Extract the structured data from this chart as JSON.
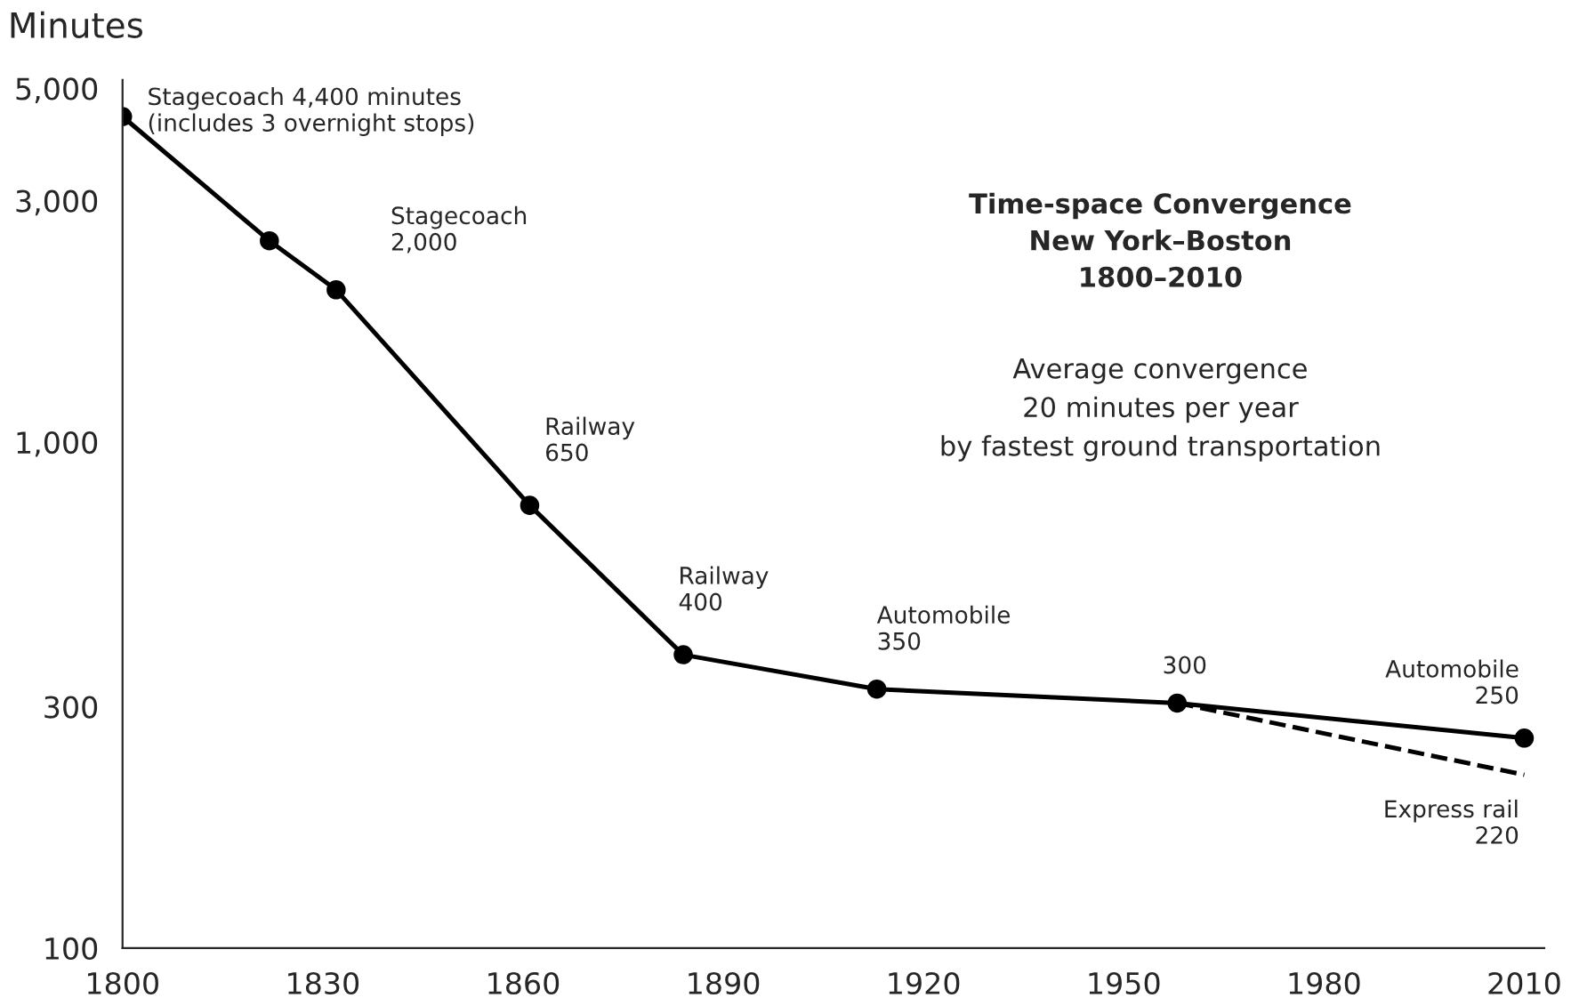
{
  "chart_data": {
    "type": "line",
    "title": "Time-space Convergence\nNew York–Boston\n1800–2010",
    "subtitle": "Average convergence\n20 minutes per year\nby fastest ground transportation",
    "ylabel": "Minutes",
    "x": [
      1800,
      1822,
      1832,
      1861,
      1884,
      1913,
      1958,
      2010
    ],
    "series": [
      {
        "color": "#000000",
        "values": [
          4400,
          2500,
          2000,
          750,
          380,
          325,
          305,
          260
        ],
        "marker": "circle",
        "line_style": "solid"
      },
      {
        "color": "#000000",
        "x": [
          1958,
          2010
        ],
        "values": [
          305,
          220
        ],
        "marker": "none",
        "line_style": "dashed"
      }
    ],
    "log": true,
    "xlim": [
      1800,
      2013
    ],
    "ylim": [
      100,
      5200
    ],
    "xticks": [
      1800,
      1830,
      1860,
      1890,
      1920,
      1950,
      1980,
      2010
    ],
    "yticks": [
      {
        "value": 100,
        "label": "100"
      },
      {
        "value": 300,
        "label": "300"
      },
      {
        "value": 1000,
        "label": "1,000"
      },
      {
        "value": 3000,
        "label": "3,000"
      },
      {
        "value": 5000,
        "label": "5,000"
      }
    ],
    "grid": false,
    "legend": false,
    "annotations": [
      {
        "text": "Stagecoach 4,400 minutes\n(includes 3 overnight stops)",
        "x": 1800,
        "y": 4400
      },
      {
        "text": "Stagecoach\n2,000",
        "x": 1832,
        "y": 2000
      },
      {
        "text": "Railway\n650",
        "x": 1861,
        "y": 750
      },
      {
        "text": "Railway\n400",
        "x": 1884,
        "y": 380
      },
      {
        "text": "Automobile\n350",
        "x": 1913,
        "y": 325
      },
      {
        "text": "300",
        "x": 1958,
        "y": 305
      },
      {
        "text": "Automobile\n250",
        "x": 2010,
        "y": 260
      },
      {
        "text": "Express rail\n220",
        "x": 2010,
        "y": 220
      }
    ]
  }
}
